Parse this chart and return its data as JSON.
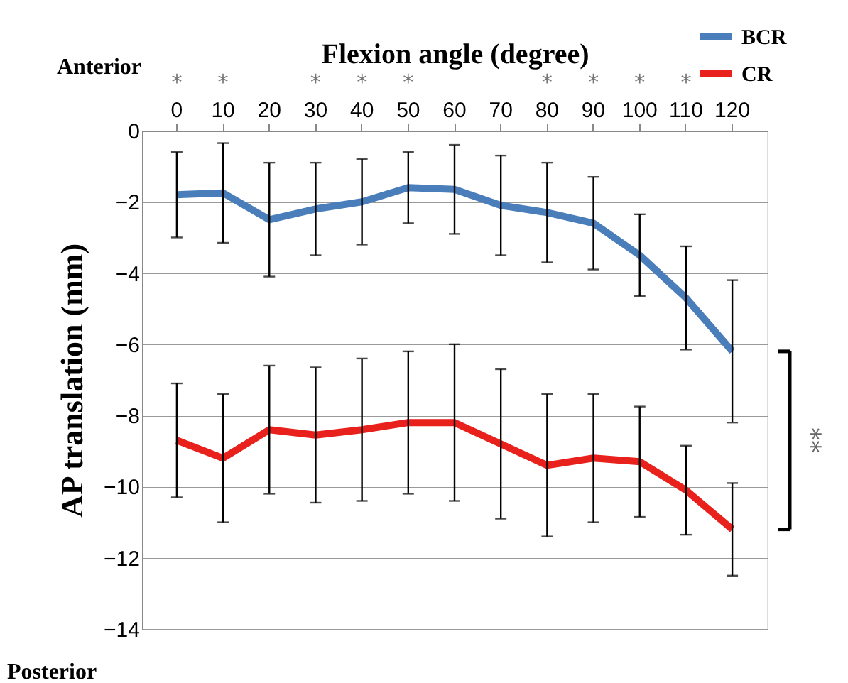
{
  "chart_data": {
    "type": "line",
    "xlabel": "Flexion angle (degree)",
    "ylabel": "AP translation (mm)",
    "categories": [
      "0",
      "10",
      "20",
      "30",
      "40",
      "50",
      "60",
      "70",
      "80",
      "90",
      "100",
      "110",
      "120"
    ],
    "series": [
      {
        "name": "BCR",
        "color": "#4a7ebb",
        "values": [
          -1.8,
          -1.75,
          -2.5,
          -2.2,
          -2.0,
          -1.6,
          -1.65,
          -2.1,
          -2.3,
          -2.6,
          -3.5,
          -4.7,
          -6.2
        ],
        "errors": [
          1.2,
          1.4,
          1.6,
          1.3,
          1.2,
          1.0,
          1.25,
          1.4,
          1.4,
          1.3,
          1.15,
          1.45,
          2.0
        ]
      },
      {
        "name": "CR",
        "color": "#e8211c",
        "values": [
          -8.7,
          -9.2,
          -8.4,
          -8.55,
          -8.4,
          -8.2,
          -8.2,
          -8.8,
          -9.4,
          -9.2,
          -9.3,
          -10.1,
          -11.2
        ],
        "errors": [
          1.6,
          1.8,
          1.8,
          1.9,
          2.0,
          2.0,
          2.2,
          2.1,
          2.0,
          1.8,
          1.55,
          1.25,
          1.3
        ]
      }
    ],
    "ylim": [
      -14,
      0
    ],
    "yticks": [
      -14,
      -12,
      -10,
      -8,
      -6,
      -4,
      -2,
      0
    ],
    "grid": "y",
    "legend": "top right",
    "marker": "none",
    "line_style": "solid",
    "annotations": [
      "Anterior",
      "Posterior",
      "**",
      "*",
      "*",
      "*",
      "*",
      "*",
      "*",
      "*",
      "*",
      "*"
    ]
  }
}
